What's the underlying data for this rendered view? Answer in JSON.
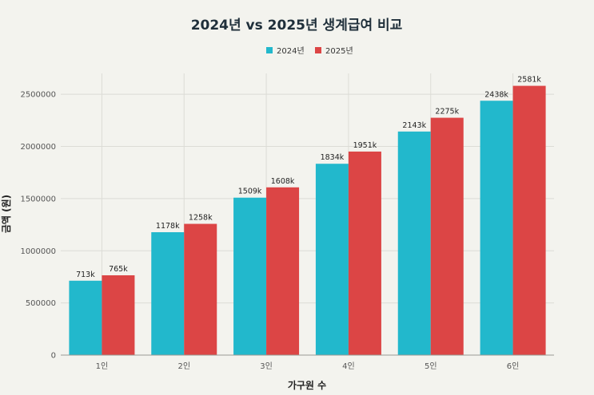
{
  "chart_data": {
    "type": "bar",
    "title": "2024년 vs 2025년 생계급여 비교",
    "xlabel": "가구원 수",
    "ylabel": "금액 (원)",
    "categories": [
      "1인",
      "2인",
      "3인",
      "4인",
      "5인",
      "6인"
    ],
    "series": [
      {
        "name": "2024년",
        "color": "#22b8cc",
        "values": [
          713000,
          1178000,
          1509000,
          1834000,
          2143000,
          2438000
        ],
        "labels": [
          "713k",
          "1178k",
          "1509k",
          "1834k",
          "2143k",
          "2438k"
        ]
      },
      {
        "name": "2025년",
        "color": "#dc4545",
        "values": [
          765000,
          1258000,
          1608000,
          1951000,
          2275000,
          2581000
        ],
        "labels": [
          "765k",
          "1258k",
          "1608k",
          "1951k",
          "2275k",
          "2581k"
        ]
      }
    ],
    "ylim": [
      0,
      2700000
    ],
    "yticks": [
      0,
      500000,
      1000000,
      1500000,
      2000000,
      2500000
    ],
    "ytick_labels": [
      "0",
      "500000",
      "1000000",
      "1500000",
      "2000000",
      "2500000"
    ],
    "grid": true,
    "legend_position": "top-center"
  }
}
